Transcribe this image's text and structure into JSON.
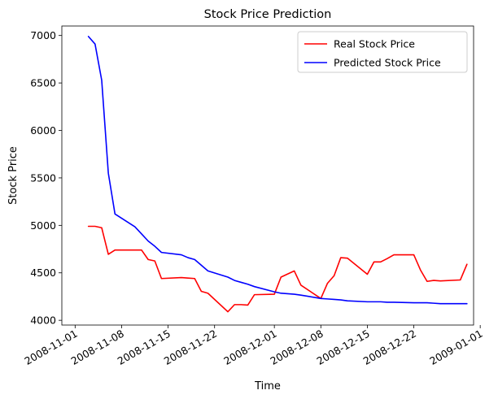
{
  "chart_data": {
    "type": "line",
    "title": "Stock Price Prediction",
    "xlabel": "Time",
    "ylabel": "Stock Price",
    "x_type": "date",
    "xlim": [
      "2008-10-30",
      "2008-12-31"
    ],
    "ylim": [
      3950,
      7100
    ],
    "y_ticks": [
      4000,
      4500,
      5000,
      5500,
      6000,
      6500,
      7000
    ],
    "x_ticks": [
      "2008-11-01",
      "2008-11-08",
      "2008-11-15",
      "2008-11-22",
      "2008-12-01",
      "2008-12-08",
      "2008-12-15",
      "2008-12-22",
      "2009-01-01"
    ],
    "x_tick_rotation": 30,
    "grid": false,
    "legend_position": "top-right",
    "series": [
      {
        "name": "Real Stock Price",
        "color": "#ff0000",
        "x": [
          "2008-11-03",
          "2008-11-04",
          "2008-11-05",
          "2008-11-06",
          "2008-11-07",
          "2008-11-10",
          "2008-11-11",
          "2008-11-12",
          "2008-11-13",
          "2008-11-14",
          "2008-11-17",
          "2008-11-18",
          "2008-11-19",
          "2008-11-20",
          "2008-11-21",
          "2008-11-24",
          "2008-11-25",
          "2008-11-26",
          "2008-11-27",
          "2008-11-28",
          "2008-12-01",
          "2008-12-02",
          "2008-12-04",
          "2008-12-05",
          "2008-12-08",
          "2008-12-09",
          "2008-12-10",
          "2008-12-11",
          "2008-12-12",
          "2008-12-15",
          "2008-12-16",
          "2008-12-17",
          "2008-12-18",
          "2008-12-19",
          "2008-12-22",
          "2008-12-23",
          "2008-12-24",
          "2008-12-25",
          "2008-12-26",
          "2008-12-29",
          "2008-12-30"
        ],
        "y": [
          4990,
          4990,
          4975,
          4695,
          4740,
          4740,
          4740,
          4640,
          4625,
          4440,
          4450,
          4445,
          4440,
          4305,
          4285,
          4090,
          4165,
          4165,
          4160,
          4270,
          4275,
          4455,
          4520,
          4370,
          4230,
          4390,
          4470,
          4660,
          4655,
          4485,
          4615,
          4615,
          4650,
          4690,
          4690,
          4530,
          4410,
          4420,
          4415,
          4425,
          4590
        ]
      },
      {
        "name": "Predicted Stock Price",
        "color": "#0000ff",
        "x": [
          "2008-11-03",
          "2008-11-04",
          "2008-11-05",
          "2008-11-06",
          "2008-11-07",
          "2008-11-10",
          "2008-11-11",
          "2008-11-12",
          "2008-11-13",
          "2008-11-14",
          "2008-11-17",
          "2008-11-18",
          "2008-11-19",
          "2008-11-20",
          "2008-11-21",
          "2008-11-24",
          "2008-11-25",
          "2008-11-26",
          "2008-11-27",
          "2008-11-28",
          "2008-12-01",
          "2008-12-02",
          "2008-12-04",
          "2008-12-05",
          "2008-12-08",
          "2008-12-09",
          "2008-12-10",
          "2008-12-11",
          "2008-12-12",
          "2008-12-15",
          "2008-12-16",
          "2008-12-17",
          "2008-12-18",
          "2008-12-19",
          "2008-12-22",
          "2008-12-23",
          "2008-12-24",
          "2008-12-25",
          "2008-12-26",
          "2008-12-29",
          "2008-12-30"
        ],
        "y": [
          6990,
          6910,
          6530,
          5550,
          5120,
          4985,
          4910,
          4835,
          4780,
          4715,
          4690,
          4660,
          4640,
          4580,
          4520,
          4455,
          4420,
          4400,
          4380,
          4355,
          4300,
          4285,
          4275,
          4265,
          4230,
          4225,
          4220,
          4215,
          4205,
          4195,
          4195,
          4195,
          4190,
          4190,
          4185,
          4185,
          4185,
          4180,
          4175,
          4175,
          4175
        ]
      }
    ]
  }
}
